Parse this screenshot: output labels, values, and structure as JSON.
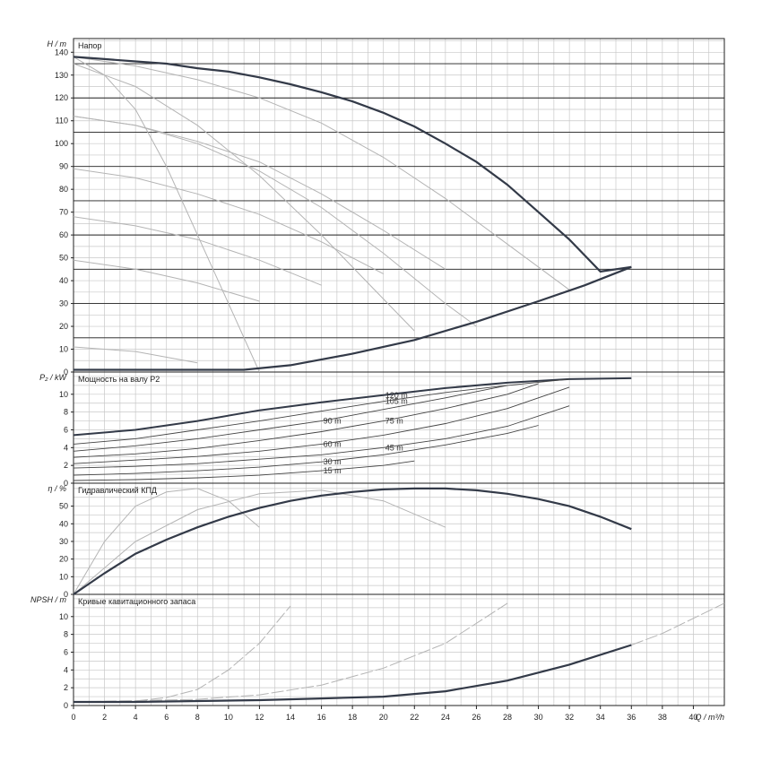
{
  "chart_data": {
    "type": "line",
    "x_axis": {
      "label": "Q / m³/h",
      "range": [
        0,
        42
      ],
      "ticks": [
        "0",
        "2",
        "4",
        "6",
        "8",
        "10",
        "12",
        "14",
        "16",
        "18",
        "20",
        "22",
        "24",
        "26",
        "28",
        "30",
        "32",
        "34",
        "36",
        "38",
        "40"
      ]
    },
    "panels": [
      {
        "id": "head",
        "title": "Напор",
        "ylabel": "H / m",
        "ylim": [
          0,
          146
        ],
        "ytick_values": [
          0,
          10,
          20,
          30,
          40,
          50,
          60,
          70,
          80,
          90,
          100,
          110,
          120,
          130,
          140
        ],
        "ytick_labels": [
          "0",
          "10",
          "20",
          "30",
          "40",
          "50",
          "60",
          "70",
          "80",
          "90",
          "100",
          "110",
          "120",
          "130",
          "140"
        ],
        "horizontal_lines": [
          15,
          30,
          45,
          60,
          75,
          90,
          105,
          120,
          135
        ],
        "max_curve": {
          "x": [
            0,
            2,
            4,
            6,
            8,
            10,
            12,
            14,
            16,
            18,
            20,
            22,
            24,
            26,
            28,
            30,
            32,
            34,
            36
          ],
          "y": [
            138,
            137,
            136,
            135,
            133,
            131.5,
            129,
            126,
            122.5,
            118.5,
            113.5,
            107.5,
            100,
            92,
            82,
            70,
            58,
            44,
            46
          ]
        },
        "min_curve": {
          "x": [
            0,
            4,
            8,
            11,
            14,
            18,
            22,
            26,
            30,
            33,
            36
          ],
          "y": [
            1,
            1,
            1,
            1,
            3,
            8,
            14,
            22,
            31,
            38,
            46
          ]
        },
        "speed_curves": [
          {
            "x": [
              0,
              4,
              8,
              12,
              16,
              20,
              24,
              28,
              32
            ],
            "y": [
              138,
              134,
              128,
              120,
              109,
              94,
              76,
              56,
              36
            ]
          },
          {
            "x": [
              0,
              4,
              8,
              12,
              16,
              20,
              24
            ],
            "y": [
              112,
              108,
              101,
              92,
              78,
              62,
              45
            ]
          },
          {
            "x": [
              0,
              4,
              8,
              12,
              16,
              20
            ],
            "y": [
              89,
              85,
              78,
              69,
              57,
              43
            ]
          },
          {
            "x": [
              0,
              4,
              8,
              12,
              16
            ],
            "y": [
              68,
              64,
              58,
              49,
              38
            ]
          },
          {
            "x": [
              0,
              4,
              8,
              12
            ],
            "y": [
              49,
              45,
              39,
              31
            ]
          },
          {
            "x": [
              0,
              4,
              8
            ],
            "y": [
              11,
              9,
              4
            ]
          }
        ],
        "pipe_curves": [
          {
            "x": [
              0,
              2,
              4,
              6,
              8,
              10,
              12
            ],
            "y": [
              138,
              130,
              115,
              90,
              60,
              30,
              0
            ]
          },
          {
            "x": [
              0,
              4,
              8,
              12,
              16,
              20,
              22
            ],
            "y": [
              135,
              125,
              108,
              86,
              60,
              32,
              18
            ]
          },
          {
            "x": [
              0,
              4,
              8,
              12,
              16,
              20,
              24,
              26
            ],
            "y": [
              112,
              108,
              100,
              88,
              72,
              52,
              30,
              20
            ]
          }
        ]
      },
      {
        "id": "power",
        "title": "Мощность на валу P2",
        "ylabel": "P₂ / kW",
        "ylim": [
          0,
          12.5
        ],
        "ytick_values": [
          0,
          2,
          4,
          6,
          8,
          10
        ],
        "ytick_labels": [
          "0",
          "2",
          "4",
          "6",
          "8",
          "10"
        ],
        "series": [
          {
            "label": "120 m",
            "x": [
              0,
              4,
              8,
              12,
              16,
              20,
              24,
              28,
              32,
              36
            ],
            "y": [
              5.4,
              6.0,
              7.0,
              8.2,
              9.1,
              9.9,
              10.7,
              11.3,
              11.7,
              11.8
            ]
          },
          {
            "label": "105 m",
            "x": [
              0,
              4,
              8,
              12,
              16,
              20,
              24,
              28,
              32
            ],
            "y": [
              4.4,
              5.0,
              6.0,
              7.0,
              8.1,
              9.2,
              10.2,
              11.0,
              11.7
            ]
          },
          {
            "label": "90 m",
            "x": [
              0,
              4,
              8,
              12,
              16,
              20,
              24,
              28
            ],
            "y": [
              3.6,
              4.2,
              5.0,
              6.0,
              7.0,
              8.3,
              9.6,
              11.0
            ]
          },
          {
            "label": "75 m",
            "x": [
              0,
              4,
              8,
              12,
              16,
              20,
              24,
              28,
              30
            ],
            "y": [
              2.9,
              3.3,
              3.9,
              4.8,
              5.8,
              7.0,
              8.4,
              10.0,
              11.2
            ]
          },
          {
            "label": "60 m",
            "x": [
              0,
              4,
              8,
              12,
              16,
              20,
              24,
              28,
              32
            ],
            "y": [
              2.2,
              2.6,
              3.0,
              3.6,
              4.4,
              5.4,
              6.7,
              8.4,
              10.8
            ]
          },
          {
            "label": "45 m",
            "x": [
              0,
              4,
              8,
              12,
              16,
              20,
              24,
              28,
              32
            ],
            "y": [
              1.7,
              1.9,
              2.2,
              2.7,
              3.2,
              4.0,
              5.0,
              6.4,
              8.7
            ]
          },
          {
            "label": "30 m",
            "x": [
              0,
              4,
              8,
              12,
              16,
              20,
              24,
              28,
              30
            ],
            "y": [
              0.9,
              1.1,
              1.4,
              1.8,
              2.4,
              3.2,
              4.3,
              5.6,
              6.5
            ]
          },
          {
            "label": "15 m",
            "x": [
              0,
              4,
              8,
              12,
              16,
              20,
              22
            ],
            "y": [
              0.3,
              0.4,
              0.6,
              0.9,
              1.4,
              2.0,
              2.5
            ]
          }
        ]
      },
      {
        "id": "efficiency",
        "title": "Гидравлический КПД",
        "ylabel": "η / %",
        "ylim": [
          0,
          63
        ],
        "ytick_values": [
          0,
          10,
          20,
          30,
          40,
          50
        ],
        "ytick_labels": [
          "0",
          "10",
          "20",
          "30",
          "40",
          "50"
        ],
        "main_curve": {
          "x": [
            0,
            2,
            4,
            6,
            8,
            10,
            12,
            14,
            16,
            18,
            20,
            22,
            24,
            26,
            28,
            30,
            32,
            34,
            36
          ],
          "y": [
            0,
            12,
            23,
            31,
            38,
            44,
            49,
            53,
            56,
            58,
            59.5,
            60,
            60,
            59,
            57,
            54,
            50,
            44,
            37
          ]
        },
        "secondary_curves": [
          {
            "x": [
              0,
              2,
              4,
              6,
              8,
              10,
              12
            ],
            "y": [
              0,
              30,
              50,
              58,
              60,
              53,
              38
            ]
          },
          {
            "x": [
              0,
              4,
              8,
              12,
              16,
              20,
              24
            ],
            "y": [
              0,
              30,
              48,
              57,
              59,
              53,
              38
            ]
          }
        ]
      },
      {
        "id": "npsh",
        "title": "Кривые кавитационного запаса",
        "ylabel": "NPSH / m",
        "ylim": [
          0,
          12.5
        ],
        "ytick_values": [
          0,
          2,
          4,
          6,
          8,
          10
        ],
        "ytick_labels": [
          "0",
          "2",
          "4",
          "6",
          "8",
          "10"
        ],
        "main_curve": {
          "x": [
            0,
            4,
            8,
            12,
            16,
            20,
            24,
            28,
            32,
            36
          ],
          "y": [
            0.4,
            0.4,
            0.5,
            0.6,
            0.8,
            1.0,
            1.6,
            2.8,
            4.6,
            6.8
          ]
        },
        "secondary_curves": [
          {
            "x": [
              4,
              6,
              8,
              10,
              12,
              14
            ],
            "y": [
              0.5,
              0.9,
              1.8,
              4.0,
              7.0,
              11.2
            ]
          },
          {
            "x": [
              0,
              8,
              12,
              16,
              20,
              24,
              28
            ],
            "y": [
              0.4,
              0.7,
              1.2,
              2.3,
              4.2,
              7.0,
              11.5
            ]
          },
          {
            "x": [
              36,
              38,
              40,
              42
            ],
            "y": [
              6.8,
              8.1,
              9.8,
              11.5
            ]
          }
        ]
      }
    ],
    "grid": true,
    "colors": {
      "grid": "#c8c8c8",
      "main": "#333a48",
      "secondary": "#b4b4b4",
      "hline": "#222222"
    }
  }
}
